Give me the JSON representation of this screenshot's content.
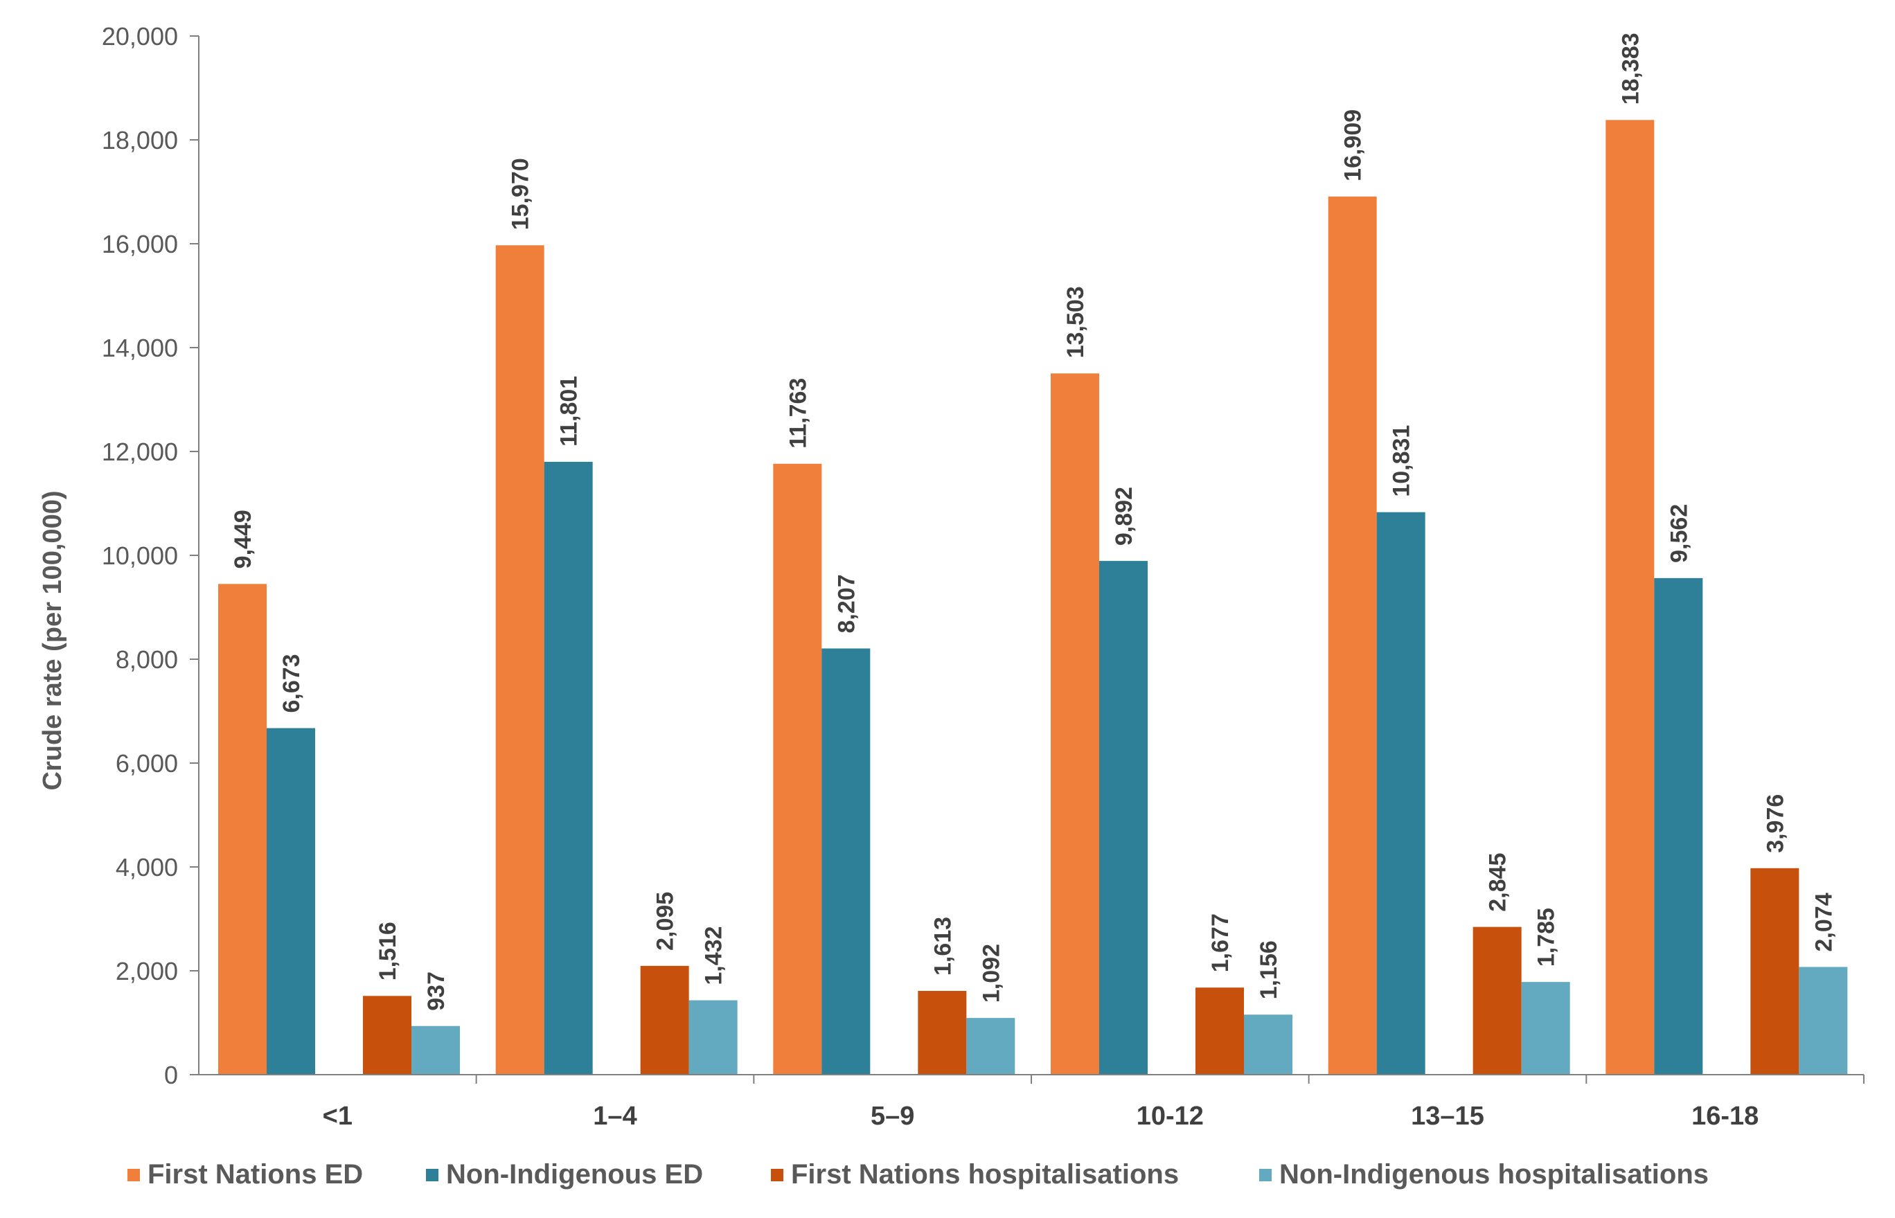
{
  "chart_data": {
    "type": "bar",
    "title": "",
    "xlabel": "",
    "ylabel": "Crude rate (per 100,000)",
    "ylim": [
      0,
      20000
    ],
    "yticks": [
      "0",
      "2,000",
      "4,000",
      "6,000",
      "8,000",
      "10,000",
      "12,000",
      "14,000",
      "16,000",
      "18,000",
      "20,000"
    ],
    "categories": [
      "<1",
      "1–4",
      "5–9",
      "10-12",
      "13–15",
      "16-18"
    ],
    "grid": false,
    "legend_position": "bottom",
    "series": [
      {
        "name": "First Nations ED",
        "color": "#F07F3C",
        "values": [
          9449,
          15970,
          11763,
          13503,
          16909,
          18383
        ],
        "labels": [
          "9,449",
          "15,970",
          "11,763",
          "13,503",
          "16,909",
          "18,383"
        ]
      },
      {
        "name": "Non-Indigenous ED",
        "color": "#2E7F98",
        "values": [
          6673,
          11801,
          8207,
          9892,
          10831,
          9562
        ],
        "labels": [
          "6,673",
          "11,801",
          "8,207",
          "9,892",
          "10,831",
          "9,562"
        ]
      },
      {
        "name": "First Nations hospitalisations",
        "color": "#C8500D",
        "values": [
          1516,
          2095,
          1613,
          1677,
          2845,
          3976
        ],
        "labels": [
          "1,516",
          "2,095",
          "1,613",
          "1,677",
          "2,845",
          "3,976"
        ]
      },
      {
        "name": "Non-Indigenous hospitalisations",
        "color": "#63AAC1",
        "values": [
          937,
          1432,
          1092,
          1156,
          1785,
          2074
        ],
        "labels": [
          "937",
          "1,432",
          "1,092",
          "1,156",
          "1,785",
          "2,074"
        ]
      }
    ]
  }
}
